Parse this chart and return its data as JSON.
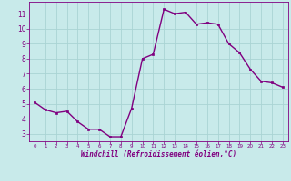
{
  "x": [
    0,
    1,
    2,
    3,
    4,
    5,
    6,
    7,
    8,
    9,
    10,
    11,
    12,
    13,
    14,
    15,
    16,
    17,
    18,
    19,
    20,
    21,
    22,
    23
  ],
  "y": [
    5.1,
    4.6,
    4.4,
    4.5,
    3.8,
    3.3,
    3.3,
    2.8,
    2.8,
    4.7,
    8.0,
    8.3,
    11.3,
    11.0,
    11.1,
    10.3,
    10.4,
    10.3,
    9.0,
    8.4,
    7.3,
    6.5,
    6.4,
    6.1
  ],
  "line_color": "#800080",
  "marker": "s",
  "marker_size": 2.0,
  "bg_color": "#c8eaea",
  "grid_color": "#aad4d4",
  "xlabel": "Windchill (Refroidissement éolien,°C)",
  "xlabel_color": "#800080",
  "tick_color": "#800080",
  "xlim": [
    -0.5,
    23.5
  ],
  "ylim": [
    2.5,
    11.8
  ],
  "yticks": [
    3,
    4,
    5,
    6,
    7,
    8,
    9,
    10,
    11
  ],
  "xticks": [
    0,
    1,
    2,
    3,
    4,
    5,
    6,
    7,
    8,
    9,
    10,
    11,
    12,
    13,
    14,
    15,
    16,
    17,
    18,
    19,
    20,
    21,
    22,
    23
  ],
  "linewidth": 1.0
}
